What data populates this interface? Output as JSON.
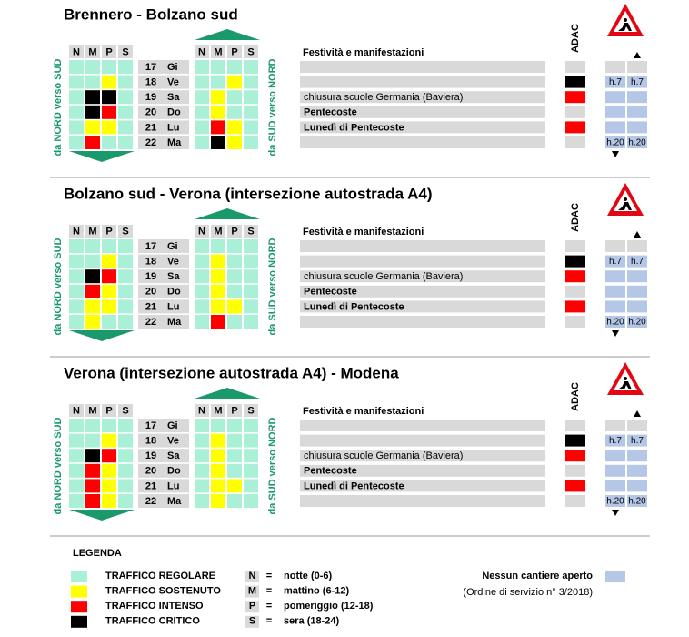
{
  "sections": [
    {
      "title": "Brennero - Bolzano sud",
      "nord_sud": [
        [
          0,
          0,
          0,
          0
        ],
        [
          0,
          0,
          1,
          0
        ],
        [
          0,
          3,
          3,
          0
        ],
        [
          0,
          3,
          2,
          0
        ],
        [
          0,
          1,
          1,
          0
        ],
        [
          0,
          2,
          0,
          0
        ]
      ],
      "sud_nord": [
        [
          0,
          0,
          0,
          0
        ],
        [
          0,
          0,
          1,
          0
        ],
        [
          0,
          1,
          0,
          0
        ],
        [
          0,
          1,
          0,
          0
        ],
        [
          0,
          2,
          1,
          0
        ],
        [
          0,
          3,
          1,
          0
        ]
      ]
    },
    {
      "title": "Bolzano sud - Verona (intersezione autostrada A4)",
      "nord_sud": [
        [
          0,
          0,
          0,
          0
        ],
        [
          0,
          0,
          1,
          0
        ],
        [
          0,
          3,
          2,
          0
        ],
        [
          0,
          2,
          1,
          0
        ],
        [
          0,
          1,
          1,
          0
        ],
        [
          0,
          1,
          0,
          0
        ]
      ],
      "sud_nord": [
        [
          0,
          0,
          0,
          0
        ],
        [
          0,
          1,
          0,
          0
        ],
        [
          0,
          1,
          0,
          0
        ],
        [
          0,
          1,
          0,
          0
        ],
        [
          0,
          1,
          1,
          0
        ],
        [
          0,
          2,
          0,
          0
        ]
      ]
    },
    {
      "title": "Verona (intersezione autostrada A4) - Modena",
      "nord_sud": [
        [
          0,
          0,
          0,
          0
        ],
        [
          0,
          0,
          1,
          0
        ],
        [
          0,
          3,
          2,
          0
        ],
        [
          0,
          2,
          1,
          0
        ],
        [
          0,
          2,
          1,
          0
        ],
        [
          0,
          2,
          1,
          0
        ]
      ],
      "sud_nord": [
        [
          0,
          0,
          0,
          0
        ],
        [
          0,
          1,
          0,
          0
        ],
        [
          0,
          1,
          0,
          0
        ],
        [
          0,
          1,
          0,
          0
        ],
        [
          0,
          1,
          1,
          0
        ],
        [
          0,
          1,
          0,
          0
        ]
      ]
    }
  ],
  "labels": {
    "nord_sud": "da NORD verso SUD",
    "sud_nord": "da SUD verso NORD",
    "periods": [
      "N",
      "M",
      "P",
      "S"
    ],
    "events_header": "Festività e manifestazioni",
    "adac": "ADAC"
  },
  "days": [
    {
      "date": "17",
      "day": "Gi"
    },
    {
      "date": "18",
      "day": "Ve"
    },
    {
      "date": "19",
      "day": "Sa"
    },
    {
      "date": "20",
      "day": "Do"
    },
    {
      "date": "21",
      "day": "Lu"
    },
    {
      "date": "22",
      "day": "Ma"
    }
  ],
  "events": [
    null,
    null,
    {
      "text": "chiusura scuole Germania (Baviera)",
      "bold": false
    },
    {
      "text": "Pentecoste",
      "bold": true
    },
    {
      "text": "Lunedì di Pentecoste",
      "bold": true
    },
    null
  ],
  "adac": [
    null,
    3,
    2,
    null,
    2,
    null
  ],
  "cantiere": {
    "start": "h.7",
    "end": "h.20",
    "rows": [
      false,
      true,
      true,
      true,
      true,
      true
    ]
  },
  "legend": {
    "title": "LEGENDA",
    "traffic": [
      {
        "label": "TRAFFICO REGOLARE",
        "color": "#a9f0d6"
      },
      {
        "label": "TRAFFICO SOSTENUTO",
        "color": "#ffff00"
      },
      {
        "label": "TRAFFICO INTENSO",
        "color": "#ff0000"
      },
      {
        "label": "TRAFFICO CRITICO",
        "color": "#000000"
      }
    ],
    "equals": "=",
    "periods": [
      {
        "key": "N",
        "text": "notte (0-6)"
      },
      {
        "key": "M",
        "text": "mattino (6-12)"
      },
      {
        "key": "P",
        "text": "pomeriggio (12-18)"
      },
      {
        "key": "S",
        "text": "sera (18-24)"
      }
    ],
    "no_works": {
      "label": "Nessun cantiere aperto",
      "note": "(Ordine di servizio n° 3/2018)",
      "color": "#b4c7e7"
    }
  }
}
